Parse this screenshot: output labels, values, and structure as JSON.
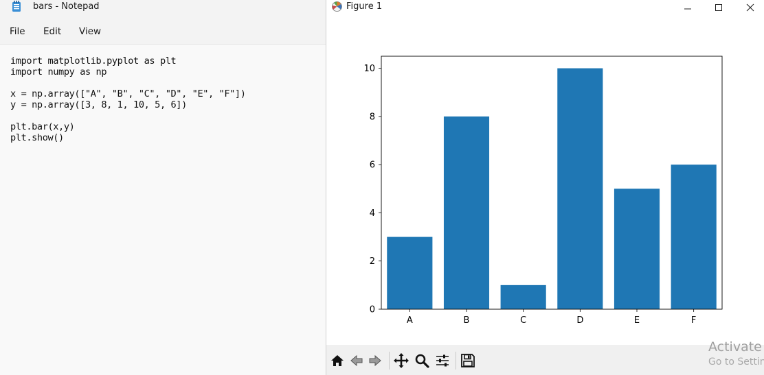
{
  "notepad": {
    "title": "bars - Notepad",
    "menu": [
      "File",
      "Edit",
      "View"
    ],
    "lines": [
      "import matplotlib.pyplot as plt",
      "import numpy as np",
      "",
      "x = np.array([\"A\", \"B\", \"C\", \"D\", \"E\", \"F\"])",
      "y = np.array([3, 8, 1, 10, 5, 6])",
      "",
      "plt.bar(x,y)",
      "plt.show()"
    ]
  },
  "figure": {
    "title": "Figure 1",
    "toolbar_icons": [
      "home-icon",
      "back-arrow-icon",
      "forward-arrow-icon",
      "pan-move-icon",
      "zoom-magnifier-icon",
      "configure-subplots-icon",
      "save-floppy-icon"
    ]
  },
  "chart_data": {
    "type": "bar",
    "categories": [
      "A",
      "B",
      "C",
      "D",
      "E",
      "F"
    ],
    "values": [
      3,
      8,
      1,
      10,
      5,
      6
    ],
    "title": "",
    "xlabel": "",
    "ylabel": "",
    "ylim": [
      0,
      10.5
    ],
    "yticks": [
      0,
      2,
      4,
      6,
      8,
      10
    ],
    "grid": false,
    "bar_color": "#1f77b4"
  },
  "watermark": {
    "line1": "Activate W",
    "line2": "Go to Settin"
  }
}
